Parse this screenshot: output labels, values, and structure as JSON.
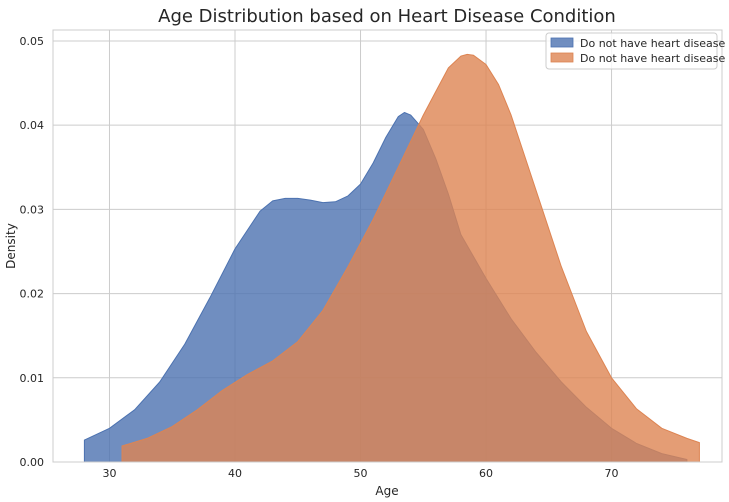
{
  "chart_data": {
    "type": "area",
    "title": "Age Distribution based on Heart Disease Condition",
    "xlabel": "Age",
    "ylabel": "Density",
    "xlim": [
      25.5,
      78.8
    ],
    "ylim": [
      0,
      0.0513
    ],
    "x_ticks": [
      30,
      40,
      50,
      60,
      70
    ],
    "y_ticks": [
      0.0,
      0.01,
      0.02,
      0.03,
      0.04,
      0.05
    ],
    "y_tick_labels": [
      "0.00",
      "0.01",
      "0.02",
      "0.03",
      "0.04",
      "0.05"
    ],
    "grid": true,
    "legend_position": "top-right",
    "series": [
      {
        "name": "Do not have heart disease",
        "color": "#4c72b0",
        "opacity": 0.8,
        "points": [
          [
            28,
            0.0026
          ],
          [
            30,
            0.004
          ],
          [
            32,
            0.0062
          ],
          [
            34,
            0.0095
          ],
          [
            36,
            0.014
          ],
          [
            38,
            0.0195
          ],
          [
            40,
            0.0253
          ],
          [
            42,
            0.0298
          ],
          [
            43,
            0.031
          ],
          [
            44,
            0.0313
          ],
          [
            45,
            0.0313
          ],
          [
            46,
            0.0311
          ],
          [
            47,
            0.0308
          ],
          [
            48,
            0.0309
          ],
          [
            49,
            0.0316
          ],
          [
            50,
            0.033
          ],
          [
            51,
            0.0355
          ],
          [
            52,
            0.0385
          ],
          [
            53,
            0.041
          ],
          [
            53.5,
            0.0415
          ],
          [
            54,
            0.0412
          ],
          [
            55,
            0.0395
          ],
          [
            56,
            0.036
          ],
          [
            57,
            0.0318
          ],
          [
            58,
            0.027
          ],
          [
            60,
            0.0218
          ],
          [
            62,
            0.017
          ],
          [
            64,
            0.013
          ],
          [
            66,
            0.0095
          ],
          [
            68,
            0.0065
          ],
          [
            70,
            0.004
          ],
          [
            72,
            0.0022
          ],
          [
            74,
            0.001
          ],
          [
            76,
            0.0003
          ]
        ]
      },
      {
        "name": "Do not have heart disease",
        "color": "#dd8452",
        "opacity": 0.8,
        "points": [
          [
            31,
            0.0019
          ],
          [
            33,
            0.0028
          ],
          [
            35,
            0.0042
          ],
          [
            37,
            0.0062
          ],
          [
            39,
            0.0085
          ],
          [
            41,
            0.0104
          ],
          [
            43,
            0.012
          ],
          [
            45,
            0.0143
          ],
          [
            47,
            0.018
          ],
          [
            49,
            0.0232
          ],
          [
            51,
            0.0288
          ],
          [
            53,
            0.035
          ],
          [
            55,
            0.0412
          ],
          [
            56,
            0.044
          ],
          [
            57,
            0.0468
          ],
          [
            58,
            0.0482
          ],
          [
            58.5,
            0.0484
          ],
          [
            59,
            0.0483
          ],
          [
            60,
            0.0472
          ],
          [
            61,
            0.0448
          ],
          [
            62,
            0.0412
          ],
          [
            64,
            0.0322
          ],
          [
            66,
            0.0232
          ],
          [
            68,
            0.0155
          ],
          [
            70,
            0.01
          ],
          [
            72,
            0.0063
          ],
          [
            74,
            0.004
          ],
          [
            76,
            0.0028
          ],
          [
            77,
            0.0023
          ]
        ]
      }
    ]
  }
}
